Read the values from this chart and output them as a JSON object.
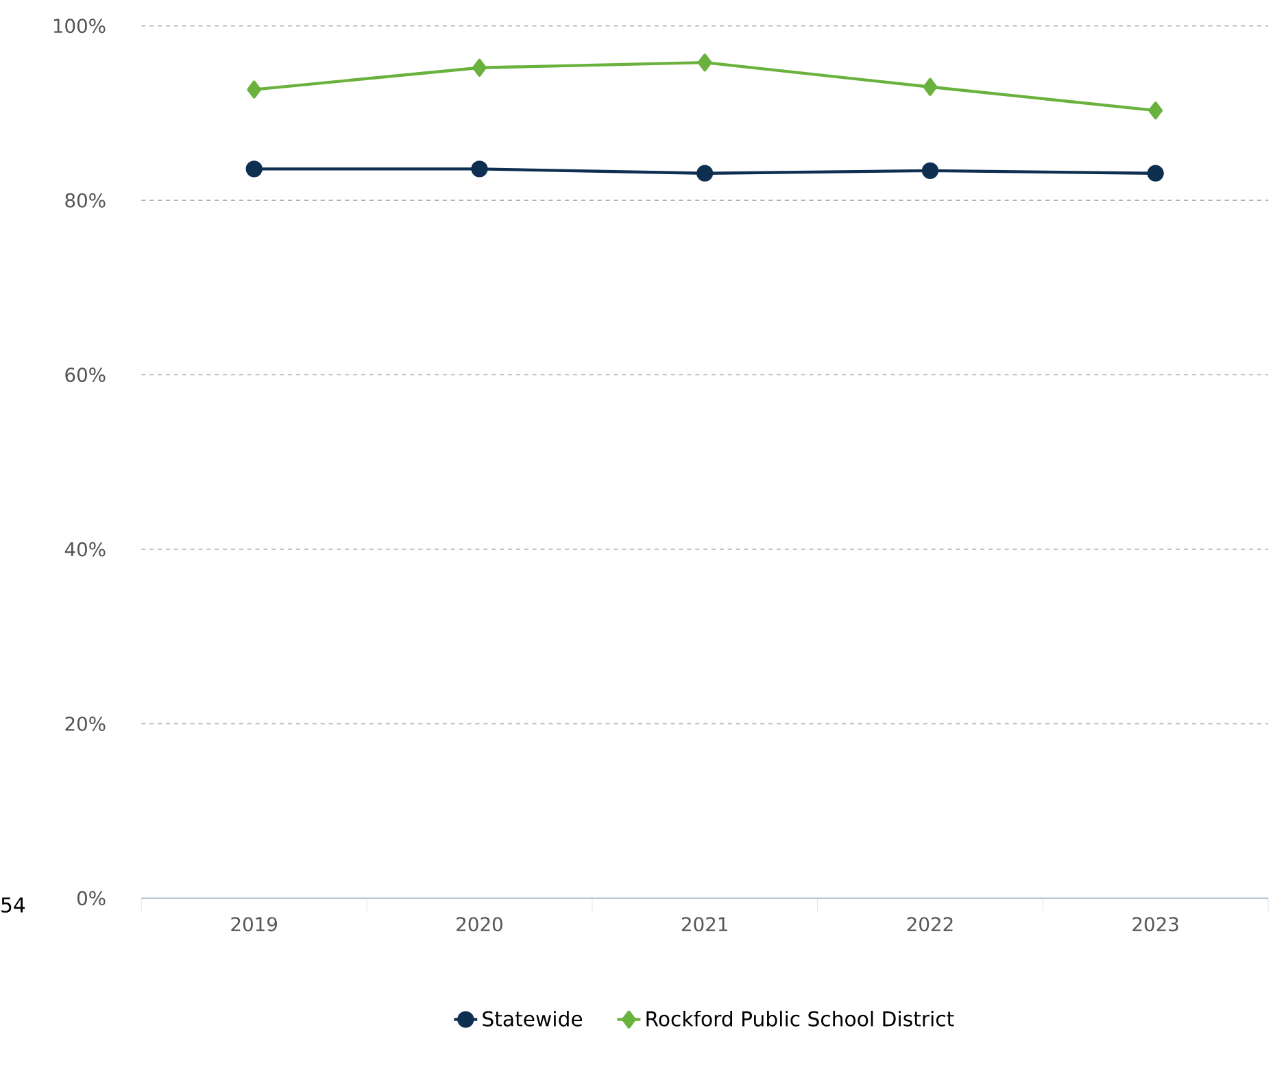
{
  "chart_data": {
    "type": "line",
    "categories": [
      "2019",
      "2020",
      "2021",
      "2022",
      "2023"
    ],
    "series": [
      {
        "name": "Statewide",
        "color": "#0e2f50",
        "marker": "circle",
        "values": [
          83.6,
          83.6,
          83.1,
          83.4,
          83.1
        ]
      },
      {
        "name": "Rockford Public School District",
        "color": "#6ab23e",
        "marker": "diamond",
        "values": [
          92.7,
          95.2,
          95.8,
          93.0,
          90.3
        ]
      }
    ],
    "ylim": [
      0,
      100
    ],
    "yticks": [
      {
        "value": 0,
        "label": "0%"
      },
      {
        "value": 20,
        "label": "20%"
      },
      {
        "value": 40,
        "label": "40%"
      },
      {
        "value": 60,
        "label": "60%"
      },
      {
        "value": 80,
        "label": "80%"
      },
      {
        "value": 100,
        "label": "100%"
      }
    ],
    "grid": "y",
    "legend": "bottom",
    "line_style": "solid",
    "annotations": [
      "54"
    ]
  }
}
